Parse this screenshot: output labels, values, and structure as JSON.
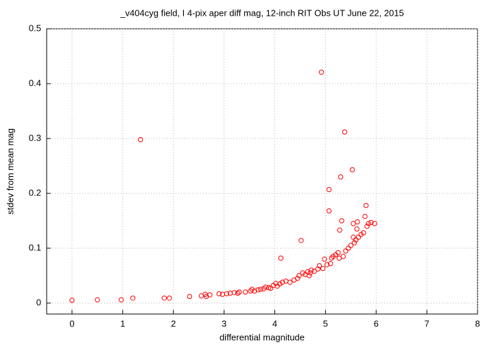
{
  "chart_data": {
    "type": "scatter",
    "title": "_v404cyg field, I 4-pix aper diff mag,  12-inch RIT Obs UT June 22, 2015",
    "x_label": "differential magnitude",
    "y_label": "stdev from mean mag",
    "x": [
      0,
      0.5,
      0.97,
      1.2,
      1.35,
      1.82,
      1.92,
      2.32,
      2.55,
      2.63,
      2.65,
      2.72,
      2.9,
      2.97,
      3.05,
      3.12,
      3.2,
      3.27,
      3.3,
      3.42,
      3.52,
      3.55,
      3.6,
      3.67,
      3.72,
      3.78,
      3.82,
      3.88,
      3.92,
      3.97,
      4.02,
      4.05,
      4.1,
      4.12,
      4.15,
      4.22,
      4.3,
      4.38,
      4.45,
      4.48,
      4.52,
      4.55,
      4.6,
      4.65,
      4.68,
      4.7,
      4.72,
      4.78,
      4.85,
      4.88,
      4.92,
      4.95,
      4.98,
      5.03,
      5.07,
      5.07,
      5.1,
      5.12,
      5.15,
      5.2,
      5.25,
      5.27,
      5.28,
      5.3,
      5.32,
      5.35,
      5.38,
      5.4,
      5.45,
      5.5,
      5.53,
      5.55,
      5.55,
      5.57,
      5.6,
      5.62,
      5.63,
      5.65,
      5.7,
      5.75,
      5.78,
      5.8,
      5.82,
      5.85,
      5.9,
      5.97
    ],
    "values": [
      0.005,
      0.006,
      0.006,
      0.009,
      0.298,
      0.009,
      0.009,
      0.012,
      0.013,
      0.016,
      0.012,
      0.015,
      0.017,
      0.016,
      0.017,
      0.018,
      0.019,
      0.018,
      0.02,
      0.02,
      0.022,
      0.025,
      0.022,
      0.024,
      0.025,
      0.026,
      0.029,
      0.028,
      0.027,
      0.032,
      0.036,
      0.031,
      0.035,
      0.082,
      0.038,
      0.04,
      0.038,
      0.042,
      0.045,
      0.05,
      0.114,
      0.055,
      0.052,
      0.057,
      0.05,
      0.055,
      0.06,
      0.058,
      0.062,
      0.068,
      0.421,
      0.063,
      0.08,
      0.07,
      0.207,
      0.168,
      0.072,
      0.082,
      0.085,
      0.088,
      0.092,
      0.082,
      0.133,
      0.23,
      0.15,
      0.085,
      0.312,
      0.095,
      0.1,
      0.105,
      0.243,
      0.12,
      0.145,
      0.11,
      0.115,
      0.135,
      0.148,
      0.12,
      0.125,
      0.128,
      0.158,
      0.178,
      0.14,
      0.145,
      0.147,
      0.145
    ],
    "color": "#ff0000",
    "xlim": [
      -0.5,
      8
    ],
    "xticks": [
      0,
      1,
      2,
      3,
      4,
      5,
      6,
      7,
      8
    ],
    "ylim": [
      -0.02,
      0.5
    ],
    "yticks": [
      0,
      0.1,
      0.2,
      0.3,
      0.4,
      0.5
    ],
    "grid": true
  }
}
